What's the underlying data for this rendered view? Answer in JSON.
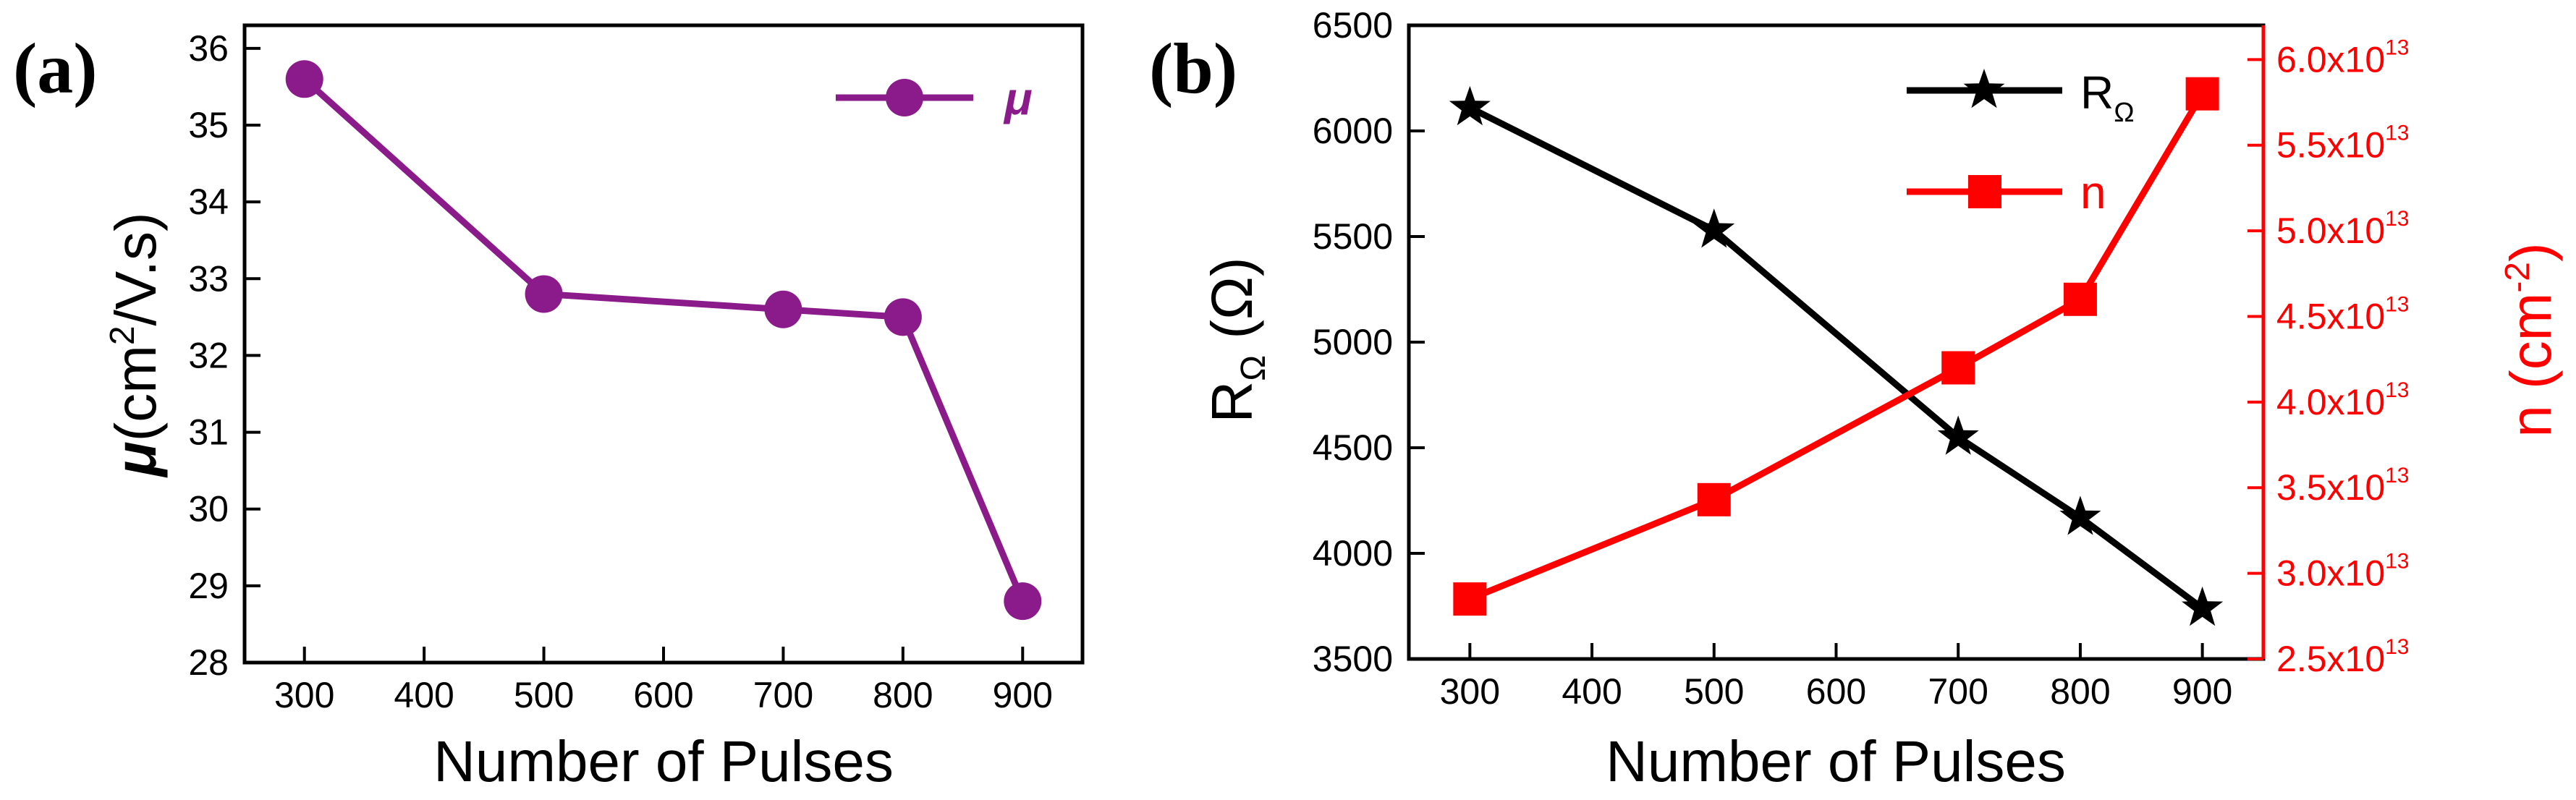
{
  "colors": {
    "mu": "#8b1a8b",
    "resistance": "#000000",
    "carrier": "#ff0000"
  },
  "chart_data": [
    {
      "type": "line",
      "panel_label": "(a)",
      "xlabel": "Number of Pulses",
      "ylabel": {
        "symbol": "μ",
        "text": "(cm",
        "sup": "2",
        "tail": "/V.s)"
      },
      "xlim": [
        250,
        950
      ],
      "ylim": [
        28,
        36.3
      ],
      "x_ticks": [
        300,
        400,
        500,
        600,
        700,
        800,
        900
      ],
      "y_ticks": [
        28,
        29,
        30,
        31,
        32,
        33,
        34,
        35,
        36
      ],
      "legend": {
        "position": "top-right",
        "entries": [
          "μ"
        ]
      },
      "series": [
        {
          "name": "μ",
          "marker": "circle",
          "x": [
            300,
            500,
            700,
            800,
            900
          ],
          "y": [
            35.6,
            32.8,
            32.6,
            32.5,
            28.8
          ]
        }
      ]
    },
    {
      "type": "line",
      "panel_label": "(b)",
      "xlabel": "Number of Pulses",
      "ylabel_left": {
        "text": "R",
        "sub": "Ω",
        "tail": " (Ω)"
      },
      "ylabel_right": {
        "text": "n (cm",
        "sup": "-2",
        "tail": ")"
      },
      "xlim": [
        250,
        950
      ],
      "ylim_left": [
        3500,
        6500
      ],
      "ylim_right": [
        25000000000000.0,
        62000000000000.0
      ],
      "x_ticks": [
        300,
        400,
        500,
        600,
        700,
        800,
        900
      ],
      "y_ticks_left": [
        3500,
        4000,
        4500,
        5000,
        5500,
        6000,
        6500
      ],
      "y_ticks_right": [
        {
          "value": 25000000000000.0,
          "mantissa": "2.5x10",
          "exp": "13"
        },
        {
          "value": 30000000000000.0,
          "mantissa": "3.0x10",
          "exp": "13"
        },
        {
          "value": 35000000000000.0,
          "mantissa": "3.5x10",
          "exp": "13"
        },
        {
          "value": 40000000000000.0,
          "mantissa": "4.0x10",
          "exp": "13"
        },
        {
          "value": 45000000000000.0,
          "mantissa": "4.5x10",
          "exp": "13"
        },
        {
          "value": 50000000000000.0,
          "mantissa": "5.0x10",
          "exp": "13"
        },
        {
          "value": 55000000000000.0,
          "mantissa": "5.5x10",
          "exp": "13"
        },
        {
          "value": 60000000000000.0,
          "mantissa": "6.0x10",
          "exp": "13"
        }
      ],
      "legend": {
        "position": "top-right",
        "entries": [
          "RΩ",
          "n"
        ]
      },
      "series": [
        {
          "name": "RΩ",
          "label_main": "R",
          "label_sub": "Ω",
          "marker": "star",
          "axis": "left",
          "x": [
            300,
            500,
            700,
            800,
            900
          ],
          "y": [
            6110,
            5530,
            4550,
            4170,
            3740
          ]
        },
        {
          "name": "n",
          "label_main": "n",
          "marker": "square",
          "axis": "right",
          "x": [
            300,
            500,
            700,
            800,
            900
          ],
          "y": [
            28500000000000.0,
            34300000000000.0,
            42000000000000.0,
            46000000000000.0,
            58000000000000.0
          ]
        }
      ]
    }
  ]
}
